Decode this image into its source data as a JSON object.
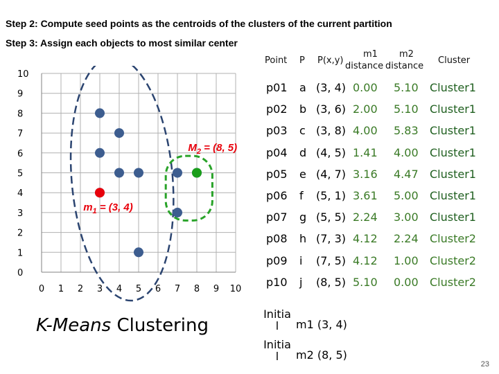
{
  "steps": {
    "step2": "Step 2: Compute seed points as the centroids of the clusters of the current partition",
    "step3": "Step 3: Assign each objects to most similar center"
  },
  "axes": {
    "y_ticks": [
      "0",
      "1",
      "2",
      "3",
      "4",
      "5",
      "6",
      "7",
      "8",
      "9",
      "10"
    ],
    "x_ticks": [
      "0",
      "1",
      "2",
      "3",
      "4",
      "5",
      "6",
      "7",
      "8",
      "9",
      "10"
    ]
  },
  "labels": {
    "m1_prefix": "m",
    "m1_sub": "1",
    "m1_rest": " = (3, 4)",
    "m2_prefix": "M",
    "m2_sub": "2",
    "m2_rest": " = (8, 5)"
  },
  "colors": {
    "point": "#3d5d8f",
    "centroid_m1": "#e8000b",
    "centroid_m2": "#1a9e1a",
    "cluster1_border": "#2b4470",
    "cluster2_border": "#29a329",
    "m1_label": "#e8000b",
    "m2_label": "#e8000b",
    "marker_fill": "#c7d3ee"
  },
  "chart_data": {
    "type": "scatter",
    "xlim": [
      0,
      10
    ],
    "ylim": [
      0,
      10
    ],
    "points": [
      {
        "x": 3,
        "y": 4
      },
      {
        "x": 3,
        "y": 6
      },
      {
        "x": 3,
        "y": 8
      },
      {
        "x": 4,
        "y": 5
      },
      {
        "x": 4,
        "y": 7
      },
      {
        "x": 5,
        "y": 1
      },
      {
        "x": 5,
        "y": 5
      },
      {
        "x": 7,
        "y": 3
      },
      {
        "x": 7,
        "y": 5
      },
      {
        "x": 8,
        "y": 5
      }
    ],
    "centroids": [
      {
        "name": "m1",
        "x": 3,
        "y": 4
      },
      {
        "name": "M2",
        "x": 8,
        "y": 5
      }
    ]
  },
  "table": {
    "headers": {
      "point": "Point",
      "p": "P",
      "pxy": "P(x,y)",
      "m1": "m1",
      "m2": "m2",
      "dist1": "distance",
      "dist2": "distance",
      "cluster": "Cluster"
    },
    "rows": [
      {
        "point": "p01",
        "p": "a",
        "pxy": "(3, 4)",
        "m1": "0.00",
        "m2": "5.10",
        "cluster": "Cluster1"
      },
      {
        "point": "p02",
        "p": "b",
        "pxy": "(3, 6)",
        "m1": "2.00",
        "m2": "5.10",
        "cluster": "Cluster1"
      },
      {
        "point": "p03",
        "p": "c",
        "pxy": "(3, 8)",
        "m1": "4.00",
        "m2": "5.83",
        "cluster": "Cluster1"
      },
      {
        "point": "p04",
        "p": "d",
        "pxy": "(4, 5)",
        "m1": "1.41",
        "m2": "4.00",
        "cluster": "Cluster1"
      },
      {
        "point": "p05",
        "p": "e",
        "pxy": "(4, 7)",
        "m1": "3.16",
        "m2": "4.47",
        "cluster": "Cluster1"
      },
      {
        "point": "p06",
        "p": "f",
        "pxy": "(5, 1)",
        "m1": "3.61",
        "m2": "5.00",
        "cluster": "Cluster1"
      },
      {
        "point": "p07",
        "p": "g",
        "pxy": "(5, 5)",
        "m1": "2.24",
        "m2": "3.00",
        "cluster": "Cluster1"
      },
      {
        "point": "p08",
        "p": "h",
        "pxy": "(7, 3)",
        "m1": "4.12",
        "m2": "2.24",
        "cluster": "Cluster2"
      },
      {
        "point": "p09",
        "p": "i",
        "pxy": "(7, 5)",
        "m1": "4.12",
        "m2": "1.00",
        "cluster": "Cluster2"
      },
      {
        "point": "p10",
        "p": "j",
        "pxy": "(8, 5)",
        "m1": "5.10",
        "m2": "0.00",
        "cluster": "Cluster2"
      }
    ]
  },
  "title": {
    "italic": "K-Means",
    "rest": " Clustering"
  },
  "initial": [
    {
      "label_line1": "Initia",
      "label_line2": "l",
      "value": "m1 (3, 4)"
    },
    {
      "label_line1": "Initia",
      "label_line2": "l",
      "value": "m2 (8, 5)"
    }
  ],
  "page_number": "23"
}
